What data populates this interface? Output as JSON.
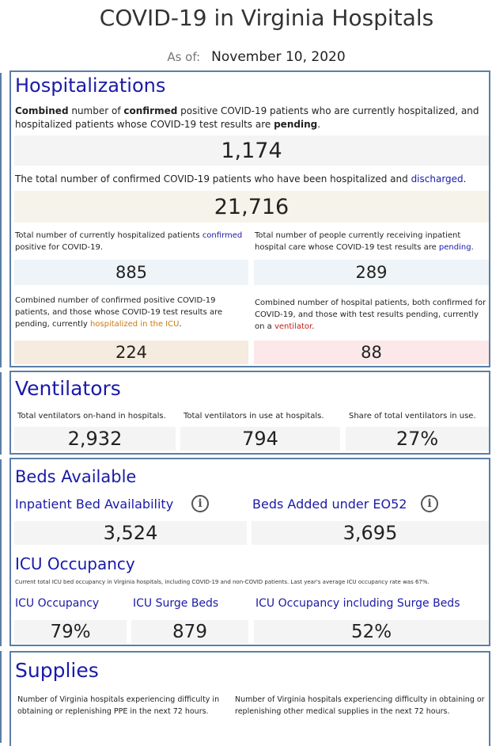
{
  "title": "COVID-19 in Virginia Hospitals",
  "as_of": {
    "label": "As of:",
    "date": "November 10, 2020"
  },
  "hospitalizations": {
    "heading": "Hospitalizations",
    "combined_desc": {
      "p1": "Combined",
      "p2": " number of ",
      "p3": "confirmed",
      "p4": " positive COVID-19 patients who are currently hospitalized, and hospitalized patients whose COVID-19 test results are ",
      "p5": "pending",
      "p6": "."
    },
    "combined_value": "1,174",
    "discharged_desc": {
      "p1": "The total number of confirmed COVID-19 patients who have been hospitalized and ",
      "p2": "discharged",
      "p3": "."
    },
    "discharged_value": "21,716",
    "confirmed_desc": {
      "p1": "Total number of currently hospitalized patients ",
      "p2": "confirmed",
      "p3": " positive for COVID-19."
    },
    "confirmed_value": "885",
    "pending_desc": {
      "p1": "Total number of people currently receiving inpatient hospital care whose COVID-19 test results are ",
      "p2": "pending",
      "p3": "."
    },
    "pending_value": "289",
    "icu_desc": {
      "p1": "Combined number of confirmed positive COVID-19 patients, and those whose COVID-19 test results are pending, currently ",
      "p2": "hospitalized in the ICU",
      "p3": "."
    },
    "icu_value": "224",
    "vent_desc": {
      "p1": "Combined number of hospital patients, both confirmed for COVID-19, and those with test results pending, currently on a ",
      "p2": "ventilator",
      "p3": "."
    },
    "vent_value": "88"
  },
  "ventilators": {
    "heading": "Ventilators",
    "onhand_label": "Total ventilators on-hand in hospitals.",
    "onhand_value": "2,932",
    "inuse_label": "Total ventilators in use at hospitals.",
    "inuse_value": "794",
    "share_label": "Share of total ventilators in use.",
    "share_value": "27%"
  },
  "beds": {
    "heading": "Beds Available",
    "inpatient_label": "Inpatient Bed Availability",
    "inpatient_value": "3,524",
    "eo52_label": "Beds Added under EO52",
    "eo52_value": "3,695",
    "icu_heading": "ICU Occupancy",
    "icu_note": "Current total ICU bed occupancy in Virginia hospitals, including COVID-19 and non-COVID patients. Last year's average ICU occupancy rate was 67%.",
    "icu_occ_label": "ICU Occupancy",
    "icu_occ_value": "79%",
    "surge_label": "ICU Surge Beds",
    "surge_value": "879",
    "icu_incl_label": "ICU Occupancy including Surge Beds",
    "icu_incl_value": "52%"
  },
  "supplies": {
    "heading": "Supplies",
    "ppe_desc": "Number of Virginia hospitals experiencing difficulty in obtaining or replenishing PPE in the next 72 hours.",
    "other_desc": "Number of Virginia hospitals experiencing difficulty in obtaining or replenishing other medical supplies in the next 72 hours."
  },
  "colors": {
    "heading_blue": "#1a1aa8",
    "panel_border": "#5b7fa6",
    "box_gray": "#f4f4f4",
    "box_beige": "#f6f3ea",
    "box_lightblue": "#eef4f8",
    "box_peach": "#f5ebde",
    "box_pink": "#fce8e8"
  }
}
